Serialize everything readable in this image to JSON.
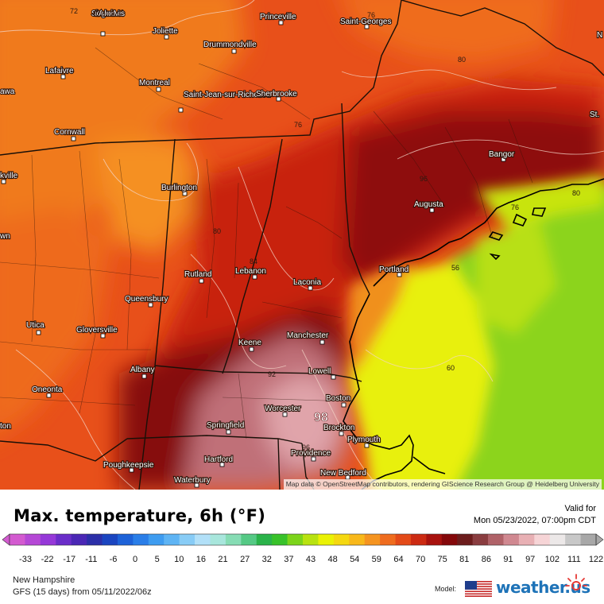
{
  "title": "Max. temperature, 6h (°F)",
  "valid": {
    "label": "Valid for",
    "datetime": "Mon 05/23/2022, 07:00pm CDT"
  },
  "footer": {
    "region": "New Hampshire",
    "model_run": "GFS (15 days) from  05/11/2022/06z",
    "model_label": "Model:",
    "brand": "weather.us"
  },
  "attribution": "Map data © OpenStreetMap contributors, rendering GIScience Research Group @ Heidelberg University",
  "scale": {
    "ticks": [
      "-33",
      "-22",
      "-17",
      "-11",
      "-6",
      "0",
      "5",
      "10",
      "16",
      "21",
      "27",
      "32",
      "37",
      "43",
      "48",
      "54",
      "59",
      "64",
      "70",
      "75",
      "81",
      "86",
      "91",
      "97",
      "102",
      "111",
      "122"
    ],
    "colors": [
      "#d35ad0",
      "#b548d6",
      "#9538d8",
      "#6a2dc9",
      "#4a27b5",
      "#2b2fa8",
      "#1a45c0",
      "#1d62d8",
      "#2a7ee8",
      "#3e9cf0",
      "#5eb4f4",
      "#88ccf6",
      "#b2e0f8",
      "#a8e6dc",
      "#86dcb4",
      "#55c985",
      "#2ab34a",
      "#38c22a",
      "#7cd41a",
      "#b8e210",
      "#eaf204",
      "#f5d810",
      "#f8b81a",
      "#f59420",
      "#ef6c1e",
      "#e34a18",
      "#cc2a12",
      "#a8120e",
      "#84080a",
      "#6c1c1c",
      "#8a3d40",
      "#b06268",
      "#d08890",
      "#e8b0b4",
      "#f6d4d6",
      "#ece8e8",
      "#c8c8c8",
      "#a8a8a8"
    ]
  },
  "cities": [
    {
      "name": "Sainte-Agathe-des-Monts"
    },
    {
      "name": "Joliette"
    },
    {
      "name": "Drummondville"
    },
    {
      "name": "Princeville"
    },
    {
      "name": "Saint-Georges"
    },
    {
      "name": "Lafaivre"
    },
    {
      "name": "Montreal"
    },
    {
      "name": "Saint-Jean-sur-Richelieu"
    },
    {
      "name": "Sherbrooke"
    },
    {
      "name": "Cornwall"
    },
    {
      "name": "Bangor"
    },
    {
      "name": "Burlington"
    },
    {
      "name": "Augusta"
    },
    {
      "name": "Rutland"
    },
    {
      "name": "Lebanon"
    },
    {
      "name": "Laconia"
    },
    {
      "name": "Portland"
    },
    {
      "name": "Queensbury"
    },
    {
      "name": "Utica"
    },
    {
      "name": "Gloversville"
    },
    {
      "name": "Keene"
    },
    {
      "name": "Manchester"
    },
    {
      "name": "Albany"
    },
    {
      "name": "Lowell"
    },
    {
      "name": "Oneonta"
    },
    {
      "name": "Boston"
    },
    {
      "name": "Worcester"
    },
    {
      "name": "Springfield"
    },
    {
      "name": "Brockton"
    },
    {
      "name": "Plymouth"
    },
    {
      "name": "Hartford"
    },
    {
      "name": "Providence"
    },
    {
      "name": "Poughkeepsie"
    },
    {
      "name": "New Bedford"
    },
    {
      "name": "Waterbury"
    },
    {
      "name": "awa"
    },
    {
      "name": "kville"
    },
    {
      "name": "wn"
    },
    {
      "name": "ton"
    },
    {
      "name": "St."
    },
    {
      "name": "N"
    }
  ],
  "isolines": [
    "72",
    "76",
    "80",
    "76",
    "80",
    "84",
    "92",
    "96",
    "96",
    "56",
    "60",
    "76",
    "80"
  ],
  "max_marker": "98"
}
